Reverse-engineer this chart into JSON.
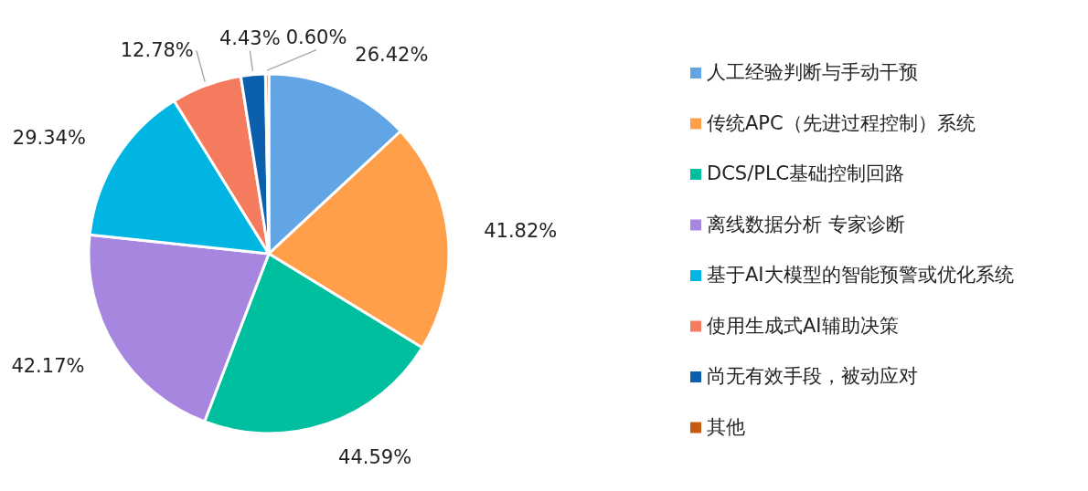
{
  "chart_data": {
    "type": "pie",
    "categories": [
      "人工经验判断与手动干预",
      "传统APC（先进过程控制）系统",
      "DCS/PLC基础控制回路",
      "离线数据分析 专家诊断",
      "基于AI大模型的智能预警或优化系统",
      "使用生成式AI辅助决策",
      "尚无有效手段，被动应对",
      "其他"
    ],
    "values": [
      26.42,
      41.82,
      44.59,
      42.17,
      29.34,
      12.78,
      4.43,
      0.6
    ],
    "value_labels": [
      "26.42%",
      "41.82%",
      "44.59%",
      "42.17%",
      "29.34%",
      "12.78%",
      "4.43%",
      "0.60%"
    ],
    "colors": [
      "#62a5e4",
      "#ff9f4a",
      "#00bf9f",
      "#a786e0",
      "#00b5e2",
      "#f47b5e",
      "#0b5fad",
      "#c55a11"
    ],
    "legend": "right"
  }
}
